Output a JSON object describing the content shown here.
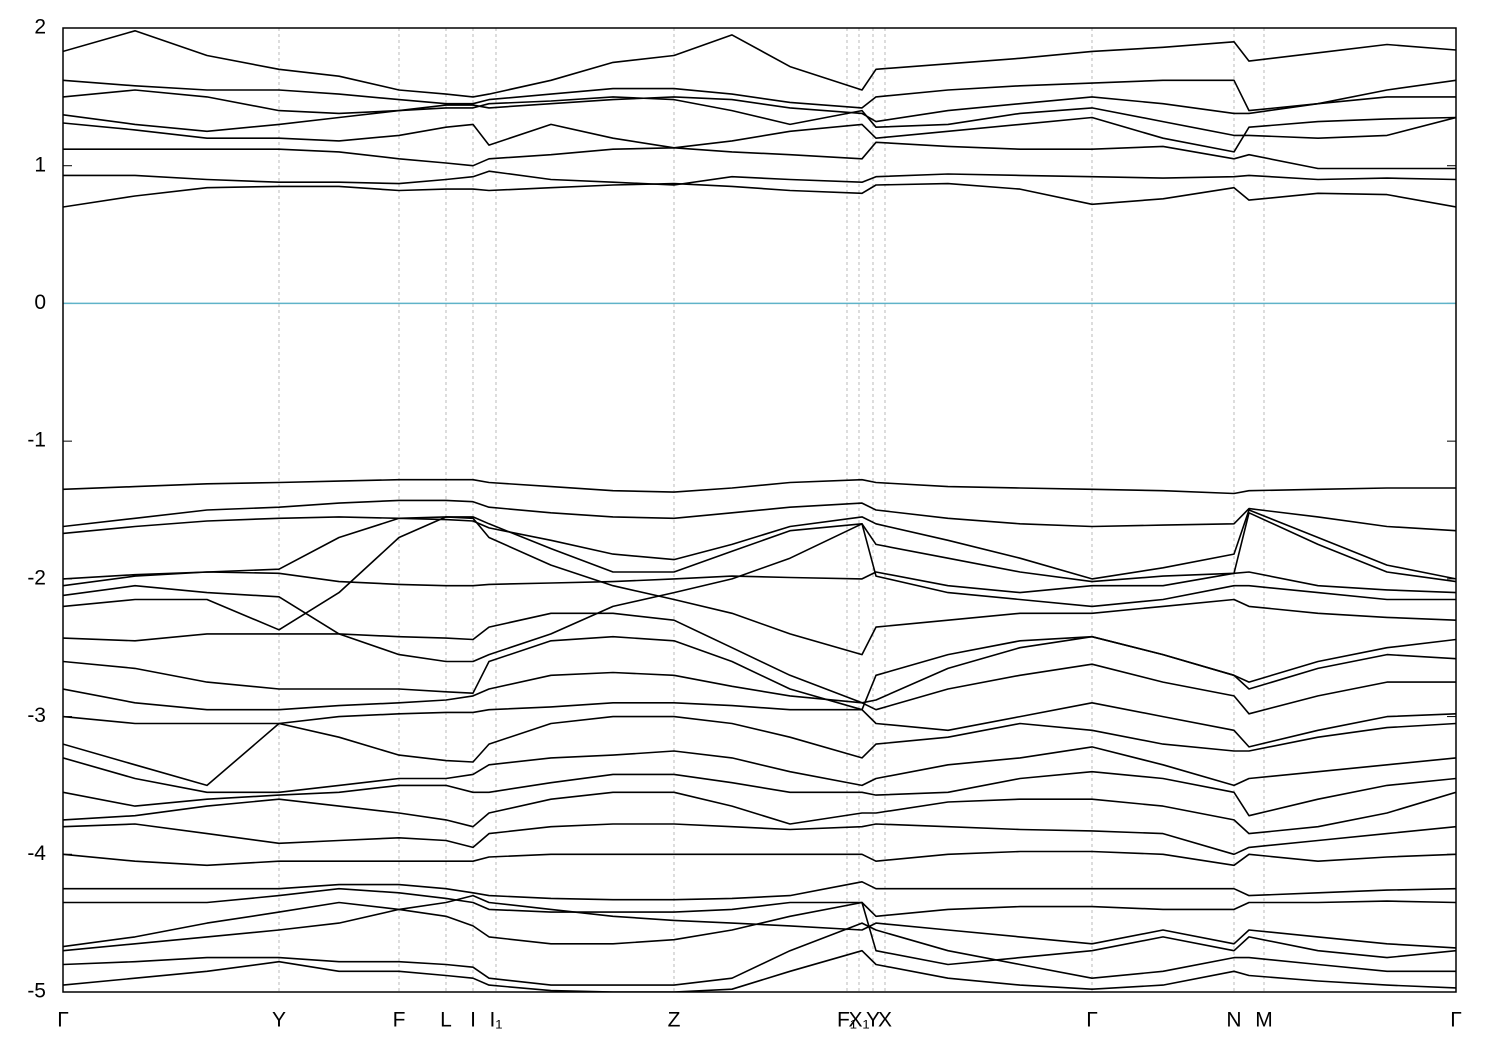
{
  "chart_data": {
    "type": "line",
    "x": [
      0,
      72,
      144,
      216,
      276,
      336,
      383,
      410,
      426,
      488,
      550,
      611,
      669,
      727,
      799,
      813,
      885,
      957,
      1029,
      1100,
      1171,
      1186,
      1255,
      1324,
      1393
    ],
    "xlim": [
      0,
      1393
    ],
    "xticks": [
      {
        "value": 0,
        "label": "Γ"
      },
      {
        "value": 216,
        "label": "Y"
      },
      {
        "value": 336,
        "label": "F"
      },
      {
        "value": 383,
        "label": "L"
      },
      {
        "value": 410,
        "label": "I"
      },
      {
        "value": 433,
        "label": "I₁"
      },
      {
        "value": 611,
        "label": "Z"
      },
      {
        "value": 784,
        "label": "F₁"
      },
      {
        "value": 796,
        "label": "X₁"
      },
      {
        "value": 810,
        "label": "Y"
      },
      {
        "value": 822,
        "label": "X"
      },
      {
        "value": 1029,
        "label": "Γ"
      },
      {
        "value": 1171,
        "label": "N"
      },
      {
        "value": 1201,
        "label": "M"
      },
      {
        "value": 1393,
        "label": "Γ"
      }
    ],
    "ylim": [
      -5,
      2
    ],
    "yticks": [
      -5,
      -4,
      -3,
      -2,
      -1,
      0,
      1,
      2
    ],
    "grid": "x",
    "reference_line": {
      "y": 0,
      "color": "#5fb3c9"
    },
    "series": [
      {
        "color": "#000000",
        "values": [
          0.7,
          0.78,
          0.84,
          0.85,
          0.85,
          0.82,
          0.83,
          0.83,
          0.82,
          0.84,
          0.86,
          0.87,
          0.85,
          0.82,
          0.8,
          0.86,
          0.87,
          0.83,
          0.72,
          0.76,
          0.84,
          0.75,
          0.8,
          0.79,
          0.7
        ]
      },
      {
        "color": "#000000",
        "values": [
          0.93,
          0.93,
          0.9,
          0.88,
          0.88,
          0.87,
          0.9,
          0.92,
          0.96,
          0.9,
          0.88,
          0.86,
          0.92,
          0.9,
          0.88,
          0.92,
          0.94,
          0.93,
          0.92,
          0.91,
          0.92,
          0.93,
          0.9,
          0.91,
          0.9
        ]
      },
      {
        "color": "#000000",
        "values": [
          1.12,
          1.12,
          1.12,
          1.12,
          1.1,
          1.05,
          1.02,
          1.0,
          1.05,
          1.08,
          1.12,
          1.13,
          1.1,
          1.08,
          1.05,
          1.17,
          1.14,
          1.12,
          1.12,
          1.14,
          1.05,
          1.08,
          0.98,
          0.98,
          0.98
        ]
      },
      {
        "color": "#000000",
        "values": [
          1.31,
          1.26,
          1.2,
          1.2,
          1.18,
          1.22,
          1.28,
          1.3,
          1.15,
          1.3,
          1.2,
          1.13,
          1.18,
          1.25,
          1.3,
          1.2,
          1.25,
          1.3,
          1.35,
          1.2,
          1.1,
          1.28,
          1.32,
          1.34,
          1.35
        ]
      },
      {
        "color": "#000000",
        "values": [
          1.37,
          1.3,
          1.25,
          1.3,
          1.35,
          1.4,
          1.42,
          1.42,
          1.45,
          1.47,
          1.5,
          1.48,
          1.4,
          1.3,
          1.4,
          1.28,
          1.3,
          1.38,
          1.42,
          1.32,
          1.22,
          1.22,
          1.2,
          1.22,
          1.35
        ]
      },
      {
        "color": "#000000",
        "values": [
          1.5,
          1.55,
          1.5,
          1.4,
          1.38,
          1.4,
          1.44,
          1.44,
          1.42,
          1.45,
          1.48,
          1.5,
          1.48,
          1.42,
          1.38,
          1.32,
          1.4,
          1.45,
          1.5,
          1.45,
          1.38,
          1.38,
          1.45,
          1.5,
          1.5
        ]
      },
      {
        "color": "#000000",
        "values": [
          1.62,
          1.58,
          1.55,
          1.55,
          1.52,
          1.48,
          1.45,
          1.45,
          1.48,
          1.52,
          1.56,
          1.56,
          1.52,
          1.46,
          1.42,
          1.5,
          1.55,
          1.58,
          1.6,
          1.62,
          1.62,
          1.4,
          1.45,
          1.55,
          1.62
        ]
      },
      {
        "color": "#000000",
        "values": [
          1.83,
          1.98,
          1.8,
          1.7,
          1.65,
          1.55,
          1.52,
          1.5,
          1.52,
          1.62,
          1.75,
          1.8,
          1.95,
          1.72,
          1.55,
          1.7,
          1.74,
          1.78,
          1.83,
          1.86,
          1.9,
          1.76,
          1.82,
          1.88,
          1.84
        ]
      },
      {
        "color": "#000000",
        "values": [
          -1.35,
          -1.33,
          -1.31,
          -1.3,
          -1.29,
          -1.28,
          -1.28,
          -1.28,
          -1.3,
          -1.33,
          -1.36,
          -1.37,
          -1.34,
          -1.3,
          -1.28,
          -1.3,
          -1.33,
          -1.34,
          -1.35,
          -1.36,
          -1.38,
          -1.36,
          -1.35,
          -1.34,
          -1.34
        ]
      },
      {
        "color": "#000000",
        "values": [
          -1.62,
          -1.56,
          -1.5,
          -1.48,
          -1.45,
          -1.43,
          -1.43,
          -1.44,
          -1.48,
          -1.52,
          -1.55,
          -1.56,
          -1.52,
          -1.48,
          -1.45,
          -1.5,
          -1.56,
          -1.6,
          -1.62,
          -1.61,
          -1.6,
          -1.49,
          -1.55,
          -1.62,
          -1.65
        ]
      },
      {
        "color": "#000000",
        "values": [
          -1.67,
          -1.62,
          -1.58,
          -1.56,
          -1.55,
          -1.56,
          -1.57,
          -1.58,
          -1.63,
          -1.72,
          -1.82,
          -1.86,
          -1.75,
          -1.62,
          -1.55,
          -1.6,
          -1.72,
          -1.85,
          -2.0,
          -1.92,
          -1.82,
          -1.5,
          -1.7,
          -1.9,
          -2.0
        ]
      },
      {
        "color": "#000000",
        "values": [
          -2.0,
          -1.97,
          -1.95,
          -1.93,
          -1.7,
          -1.56,
          -1.55,
          -1.55,
          -1.6,
          -1.78,
          -1.95,
          -1.95,
          -1.8,
          -1.65,
          -1.6,
          -1.75,
          -1.85,
          -1.95,
          -2.02,
          -1.98,
          -1.96,
          -1.52,
          -1.75,
          -1.95,
          -2.02
        ]
      },
      {
        "color": "#000000",
        "values": [
          -2.05,
          -1.98,
          -1.95,
          -1.96,
          -2.02,
          -2.04,
          -2.05,
          -2.05,
          -2.04,
          -2.03,
          -2.02,
          -2.0,
          -1.98,
          -1.99,
          -2.0,
          -1.95,
          -2.05,
          -2.1,
          -2.05,
          -2.05,
          -1.96,
          -1.95,
          -2.05,
          -2.08,
          -2.1
        ]
      },
      {
        "color": "#000000",
        "values": [
          -2.12,
          -2.05,
          -2.1,
          -2.13,
          -2.4,
          -2.55,
          -2.6,
          -2.6,
          -2.55,
          -2.4,
          -2.2,
          -2.1,
          -2.0,
          -1.85,
          -1.6,
          -1.98,
          -2.1,
          -2.15,
          -2.2,
          -2.15,
          -2.05,
          -2.05,
          -2.1,
          -2.15,
          -2.15
        ]
      },
      {
        "color": "#000000",
        "values": [
          -2.2,
          -2.15,
          -2.15,
          -2.37,
          -2.1,
          -1.7,
          -1.55,
          -1.56,
          -1.7,
          -1.9,
          -2.05,
          -2.15,
          -2.25,
          -2.4,
          -2.55,
          -2.35,
          -2.3,
          -2.25,
          -2.25,
          -2.2,
          -2.15,
          -2.2,
          -2.25,
          -2.28,
          -2.3
        ]
      },
      {
        "color": "#000000",
        "values": [
          -2.43,
          -2.45,
          -2.4,
          -2.4,
          -2.4,
          -2.42,
          -2.43,
          -2.44,
          -2.35,
          -2.25,
          -2.25,
          -2.3,
          -2.5,
          -2.7,
          -2.9,
          -2.88,
          -2.65,
          -2.5,
          -2.42,
          -2.55,
          -2.7,
          -2.75,
          -2.6,
          -2.5,
          -2.44
        ]
      },
      {
        "color": "#000000",
        "values": [
          -2.6,
          -2.65,
          -2.75,
          -2.8,
          -2.8,
          -2.8,
          -2.82,
          -2.83,
          -2.6,
          -2.45,
          -2.42,
          -2.45,
          -2.6,
          -2.8,
          -2.95,
          -2.7,
          -2.55,
          -2.45,
          -2.42,
          -2.55,
          -2.7,
          -2.8,
          -2.65,
          -2.55,
          -2.58
        ]
      },
      {
        "color": "#000000",
        "values": [
          -2.8,
          -2.9,
          -2.95,
          -2.95,
          -2.92,
          -2.9,
          -2.88,
          -2.85,
          -2.8,
          -2.7,
          -2.68,
          -2.7,
          -2.78,
          -2.85,
          -2.9,
          -2.95,
          -2.8,
          -2.7,
          -2.62,
          -2.75,
          -2.85,
          -2.98,
          -2.85,
          -2.75,
          -2.75
        ]
      },
      {
        "color": "#000000",
        "values": [
          -3.0,
          -3.05,
          -3.05,
          -3.05,
          -3.0,
          -2.98,
          -2.97,
          -2.97,
          -2.95,
          -2.93,
          -2.9,
          -2.9,
          -2.92,
          -2.95,
          -2.95,
          -3.05,
          -3.1,
          -3.0,
          -2.9,
          -3.0,
          -3.1,
          -3.22,
          -3.1,
          -3.0,
          -2.98
        ]
      },
      {
        "color": "#000000",
        "values": [
          -3.2,
          -3.35,
          -3.5,
          -3.05,
          -3.15,
          -3.28,
          -3.32,
          -3.33,
          -3.2,
          -3.05,
          -3.0,
          -3.0,
          -3.05,
          -3.15,
          -3.3,
          -3.2,
          -3.15,
          -3.05,
          -3.1,
          -3.2,
          -3.25,
          -3.25,
          -3.15,
          -3.08,
          -3.05
        ]
      },
      {
        "color": "#000000",
        "values": [
          -3.3,
          -3.45,
          -3.55,
          -3.55,
          -3.5,
          -3.45,
          -3.45,
          -3.42,
          -3.35,
          -3.3,
          -3.28,
          -3.25,
          -3.3,
          -3.4,
          -3.5,
          -3.45,
          -3.35,
          -3.3,
          -3.22,
          -3.35,
          -3.5,
          -3.45,
          -3.4,
          -3.35,
          -3.3
        ]
      },
      {
        "color": "#000000",
        "values": [
          -3.55,
          -3.65,
          -3.6,
          -3.57,
          -3.55,
          -3.5,
          -3.5,
          -3.55,
          -3.55,
          -3.48,
          -3.42,
          -3.42,
          -3.48,
          -3.55,
          -3.55,
          -3.57,
          -3.55,
          -3.45,
          -3.4,
          -3.45,
          -3.55,
          -3.72,
          -3.6,
          -3.5,
          -3.45
        ]
      },
      {
        "color": "#000000",
        "values": [
          -3.75,
          -3.72,
          -3.65,
          -3.6,
          -3.65,
          -3.7,
          -3.75,
          -3.8,
          -3.7,
          -3.6,
          -3.55,
          -3.55,
          -3.65,
          -3.78,
          -3.7,
          -3.7,
          -3.62,
          -3.6,
          -3.6,
          -3.65,
          -3.75,
          -3.85,
          -3.8,
          -3.7,
          -3.55
        ]
      },
      {
        "color": "#000000",
        "values": [
          -3.8,
          -3.78,
          -3.85,
          -3.92,
          -3.9,
          -3.88,
          -3.9,
          -3.95,
          -3.85,
          -3.8,
          -3.78,
          -3.78,
          -3.8,
          -3.82,
          -3.8,
          -3.78,
          -3.8,
          -3.82,
          -3.83,
          -3.85,
          -4.0,
          -3.95,
          -3.9,
          -3.85,
          -3.8
        ]
      },
      {
        "color": "#000000",
        "values": [
          -4.0,
          -4.05,
          -4.08,
          -4.05,
          -4.05,
          -4.05,
          -4.05,
          -4.05,
          -4.02,
          -4.0,
          -4.0,
          -4.0,
          -4.0,
          -4.0,
          -4.0,
          -4.05,
          -4.0,
          -3.98,
          -3.98,
          -4.0,
          -4.08,
          -4.0,
          -4.05,
          -4.02,
          -4.0
        ]
      },
      {
        "color": "#000000",
        "values": [
          -4.25,
          -4.25,
          -4.25,
          -4.25,
          -4.22,
          -4.22,
          -4.25,
          -4.28,
          -4.3,
          -4.32,
          -4.33,
          -4.33,
          -4.32,
          -4.3,
          -4.2,
          -4.25,
          -4.25,
          -4.25,
          -4.25,
          -4.25,
          -4.25,
          -4.3,
          -4.28,
          -4.26,
          -4.25
        ]
      },
      {
        "color": "#000000",
        "values": [
          -4.35,
          -4.35,
          -4.35,
          -4.3,
          -4.25,
          -4.28,
          -4.32,
          -4.35,
          -4.4,
          -4.42,
          -4.42,
          -4.42,
          -4.4,
          -4.35,
          -4.35,
          -4.45,
          -4.4,
          -4.38,
          -4.38,
          -4.4,
          -4.4,
          -4.35,
          -4.35,
          -4.34,
          -4.35
        ]
      },
      {
        "color": "#000000",
        "values": [
          -4.67,
          -4.6,
          -4.5,
          -4.42,
          -4.35,
          -4.4,
          -4.35,
          -4.3,
          -4.35,
          -4.4,
          -4.45,
          -4.48,
          -4.5,
          -4.52,
          -4.55,
          -4.5,
          -4.55,
          -4.6,
          -4.65,
          -4.55,
          -4.65,
          -4.55,
          -4.6,
          -4.65,
          -4.68
        ]
      },
      {
        "color": "#000000",
        "values": [
          -4.7,
          -4.65,
          -4.6,
          -4.55,
          -4.5,
          -4.4,
          -4.45,
          -4.52,
          -4.6,
          -4.65,
          -4.65,
          -4.62,
          -4.55,
          -4.45,
          -4.35,
          -4.7,
          -4.8,
          -4.75,
          -4.7,
          -4.6,
          -4.7,
          -4.6,
          -4.7,
          -4.75,
          -4.7
        ]
      },
      {
        "color": "#000000",
        "values": [
          -4.8,
          -4.78,
          -4.75,
          -4.75,
          -4.78,
          -4.78,
          -4.8,
          -4.82,
          -4.9,
          -4.95,
          -4.95,
          -4.95,
          -4.9,
          -4.7,
          -4.5,
          -4.55,
          -4.7,
          -4.8,
          -4.9,
          -4.85,
          -4.75,
          -4.75,
          -4.8,
          -4.85,
          -4.85
        ]
      },
      {
        "color": "#000000",
        "values": [
          -4.95,
          -4.9,
          -4.85,
          -4.78,
          -4.85,
          -4.85,
          -4.88,
          -4.9,
          -4.95,
          -4.99,
          -5.0,
          -5.0,
          -4.98,
          -4.85,
          -4.7,
          -4.8,
          -4.9,
          -4.95,
          -4.98,
          -4.95,
          -4.85,
          -4.88,
          -4.92,
          -4.95,
          -4.97
        ]
      }
    ]
  }
}
